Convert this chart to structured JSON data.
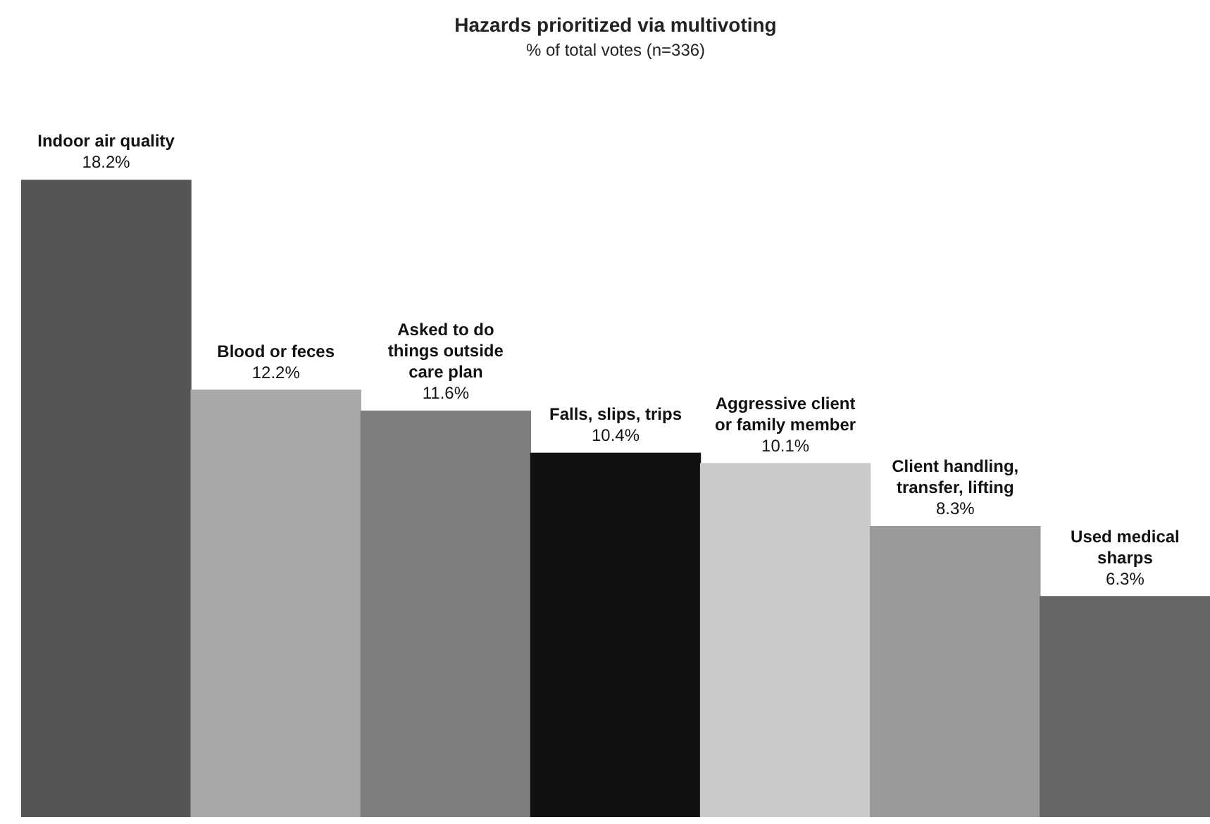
{
  "chart_data": {
    "type": "bar",
    "title": "Hazards prioritized via multivoting",
    "subtitle": "% of total votes (n=336)",
    "categories": [
      "Indoor air quality",
      "Blood or feces",
      "Asked to do things outside care plan",
      "Falls, slips, trips",
      "Aggressive client or family member",
      "Client handling, transfer, lifting",
      "Used medical sharps"
    ],
    "values": [
      18.2,
      12.2,
      11.6,
      10.4,
      10.1,
      8.3,
      6.3
    ],
    "value_labels": [
      "18.2%",
      "12.2%",
      "11.6%",
      "10.4%",
      "10.1%",
      "8.3%",
      "6.3%"
    ],
    "colors": [
      "#555555",
      "#a8a8a8",
      "#7f7f7f",
      "#111111",
      "#cacaca",
      "#999999",
      "#666666"
    ],
    "legend": false,
    "tick_labels": false
  }
}
